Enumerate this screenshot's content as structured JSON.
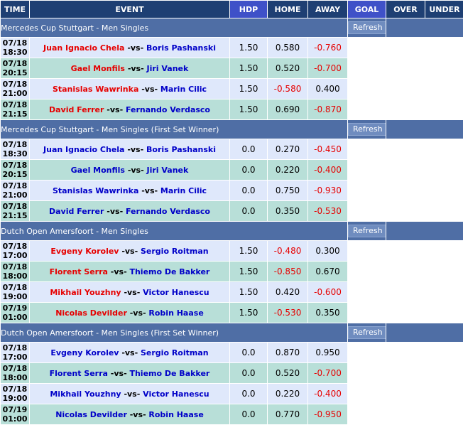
{
  "header": {
    "time": "TIME",
    "event": "EVENT",
    "hdp": "HDP",
    "home": "HOME",
    "away": "AWAY",
    "goal": "GOAL",
    "over": "OVER",
    "under": "UNDER"
  },
  "colors": {
    "header_bg": "#1e3f73",
    "header_highlight": "#3f51c8",
    "league_bg": "#4f6ea5",
    "row_blue": "#dfe8fb",
    "row_teal": "#b8dfd8",
    "favorite": "#e60000",
    "underdog": "#0000c8"
  },
  "sections": [
    {
      "league": "Mercedes Cup Stuttgart - Men Singles",
      "refresh": "Refresh",
      "matches": [
        {
          "date": "07/18",
          "time": "18:30",
          "home": "Juan Ignacio Chela",
          "away": "Boris Pashanski",
          "home_fav": true,
          "hdp": "1.50",
          "home_odds": "0.580",
          "away_odds": "-0.760"
        },
        {
          "date": "07/18",
          "time": "20:15",
          "home": "Gael Monfils",
          "away": "Jiri Vanek",
          "home_fav": true,
          "hdp": "1.50",
          "home_odds": "0.520",
          "away_odds": "-0.700"
        },
        {
          "date": "07/18",
          "time": "21:00",
          "home": "Stanislas Wawrinka",
          "away": "Marin Cilic",
          "home_fav": true,
          "hdp": "1.50",
          "home_odds": "-0.580",
          "away_odds": "0.400"
        },
        {
          "date": "07/18",
          "time": "21:15",
          "home": "David Ferrer",
          "away": "Fernando Verdasco",
          "home_fav": true,
          "hdp": "1.50",
          "home_odds": "0.690",
          "away_odds": "-0.870"
        }
      ]
    },
    {
      "league": "Mercedes Cup Stuttgart - Men Singles (First Set Winner)",
      "refresh": "Refresh",
      "matches": [
        {
          "date": "07/18",
          "time": "18:30",
          "home": "Juan Ignacio Chela",
          "away": "Boris Pashanski",
          "home_fav": false,
          "hdp": "0.0",
          "home_odds": "0.270",
          "away_odds": "-0.450"
        },
        {
          "date": "07/18",
          "time": "20:15",
          "home": "Gael Monfils",
          "away": "Jiri Vanek",
          "home_fav": false,
          "hdp": "0.0",
          "home_odds": "0.220",
          "away_odds": "-0.400"
        },
        {
          "date": "07/18",
          "time": "21:00",
          "home": "Stanislas Wawrinka",
          "away": "Marin Cilic",
          "home_fav": false,
          "hdp": "0.0",
          "home_odds": "0.750",
          "away_odds": "-0.930"
        },
        {
          "date": "07/18",
          "time": "21:15",
          "home": "David Ferrer",
          "away": "Fernando Verdasco",
          "home_fav": false,
          "hdp": "0.0",
          "home_odds": "0.350",
          "away_odds": "-0.530"
        }
      ]
    },
    {
      "league": "Dutch Open Amersfoort - Men Singles",
      "refresh": "Refresh",
      "matches": [
        {
          "date": "07/18",
          "time": "17:00",
          "home": "Evgeny Korolev",
          "away": "Sergio Roitman",
          "home_fav": true,
          "hdp": "1.50",
          "home_odds": "-0.480",
          "away_odds": "0.300"
        },
        {
          "date": "07/18",
          "time": "18:00",
          "home": "Florent Serra",
          "away": "Thiemo De Bakker",
          "home_fav": true,
          "hdp": "1.50",
          "home_odds": "-0.850",
          "away_odds": "0.670"
        },
        {
          "date": "07/18",
          "time": "19:00",
          "home": "Mikhail Youzhny",
          "away": "Victor Hanescu",
          "home_fav": true,
          "hdp": "1.50",
          "home_odds": "0.420",
          "away_odds": "-0.600"
        },
        {
          "date": "07/19",
          "time": "01:00",
          "home": "Nicolas Devilder",
          "away": "Robin Haase",
          "home_fav": true,
          "hdp": "1.50",
          "home_odds": "-0.530",
          "away_odds": "0.350"
        }
      ]
    },
    {
      "league": "Dutch Open Amersfoort - Men Singles (First Set Winner)",
      "refresh": "Refresh",
      "matches": [
        {
          "date": "07/18",
          "time": "17:00",
          "home": "Evgeny Korolev",
          "away": "Sergio Roitman",
          "home_fav": false,
          "hdp": "0.0",
          "home_odds": "0.870",
          "away_odds": "0.950"
        },
        {
          "date": "07/18",
          "time": "18:00",
          "home": "Florent Serra",
          "away": "Thiemo De Bakker",
          "home_fav": false,
          "hdp": "0.0",
          "home_odds": "0.520",
          "away_odds": "-0.700"
        },
        {
          "date": "07/18",
          "time": "19:00",
          "home": "Mikhail Youzhny",
          "away": "Victor Hanescu",
          "home_fav": false,
          "hdp": "0.0",
          "home_odds": "0.220",
          "away_odds": "-0.400"
        },
        {
          "date": "07/19",
          "time": "01:00",
          "home": "Nicolas Devilder",
          "away": "Robin Haase",
          "home_fav": false,
          "hdp": "0.0",
          "home_odds": "0.770",
          "away_odds": "-0.950"
        }
      ]
    }
  ],
  "vs_label": " -vs- "
}
